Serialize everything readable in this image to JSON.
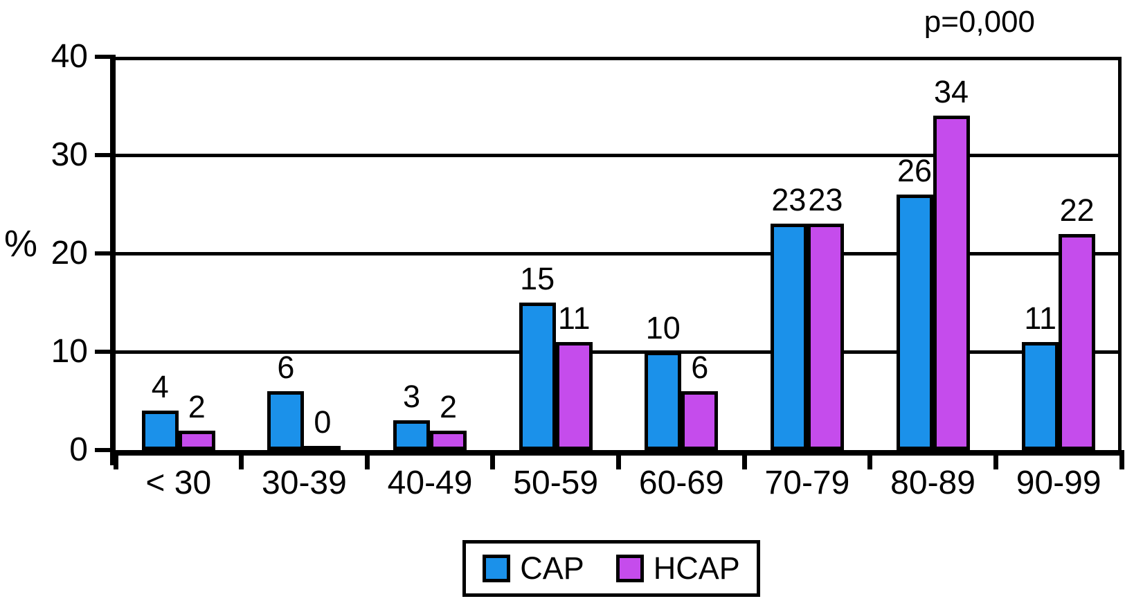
{
  "annotation": {
    "p_value": "p=0,000"
  },
  "y_axis": {
    "label": "%",
    "tick_values": [
      40,
      30,
      20,
      10,
      0
    ],
    "max": 40
  },
  "legend": {
    "items": [
      {
        "label": "CAP",
        "color": "#1B91EA"
      },
      {
        "label": "HCAP",
        "color": "#C54CEC"
      }
    ]
  },
  "chart_data": {
    "type": "bar",
    "title": "",
    "xlabel": "",
    "ylabel": "%",
    "ylim": [
      0,
      40
    ],
    "grid": true,
    "gridline_values": [
      10,
      20,
      30,
      40
    ],
    "legend_position": "bottom",
    "annotation": "p=0,000",
    "categories": [
      "< 30",
      "30-39",
      "40-49",
      "50-59",
      "60-69",
      "70-79",
      "80-89",
      "90-99"
    ],
    "series": [
      {
        "name": "CAP",
        "color": "#1B91EA",
        "values": [
          4,
          6,
          3,
          15,
          10,
          23,
          26,
          11
        ]
      },
      {
        "name": "HCAP",
        "color": "#C54CEC",
        "values": [
          2,
          0,
          2,
          11,
          6,
          23,
          34,
          22
        ]
      }
    ]
  }
}
